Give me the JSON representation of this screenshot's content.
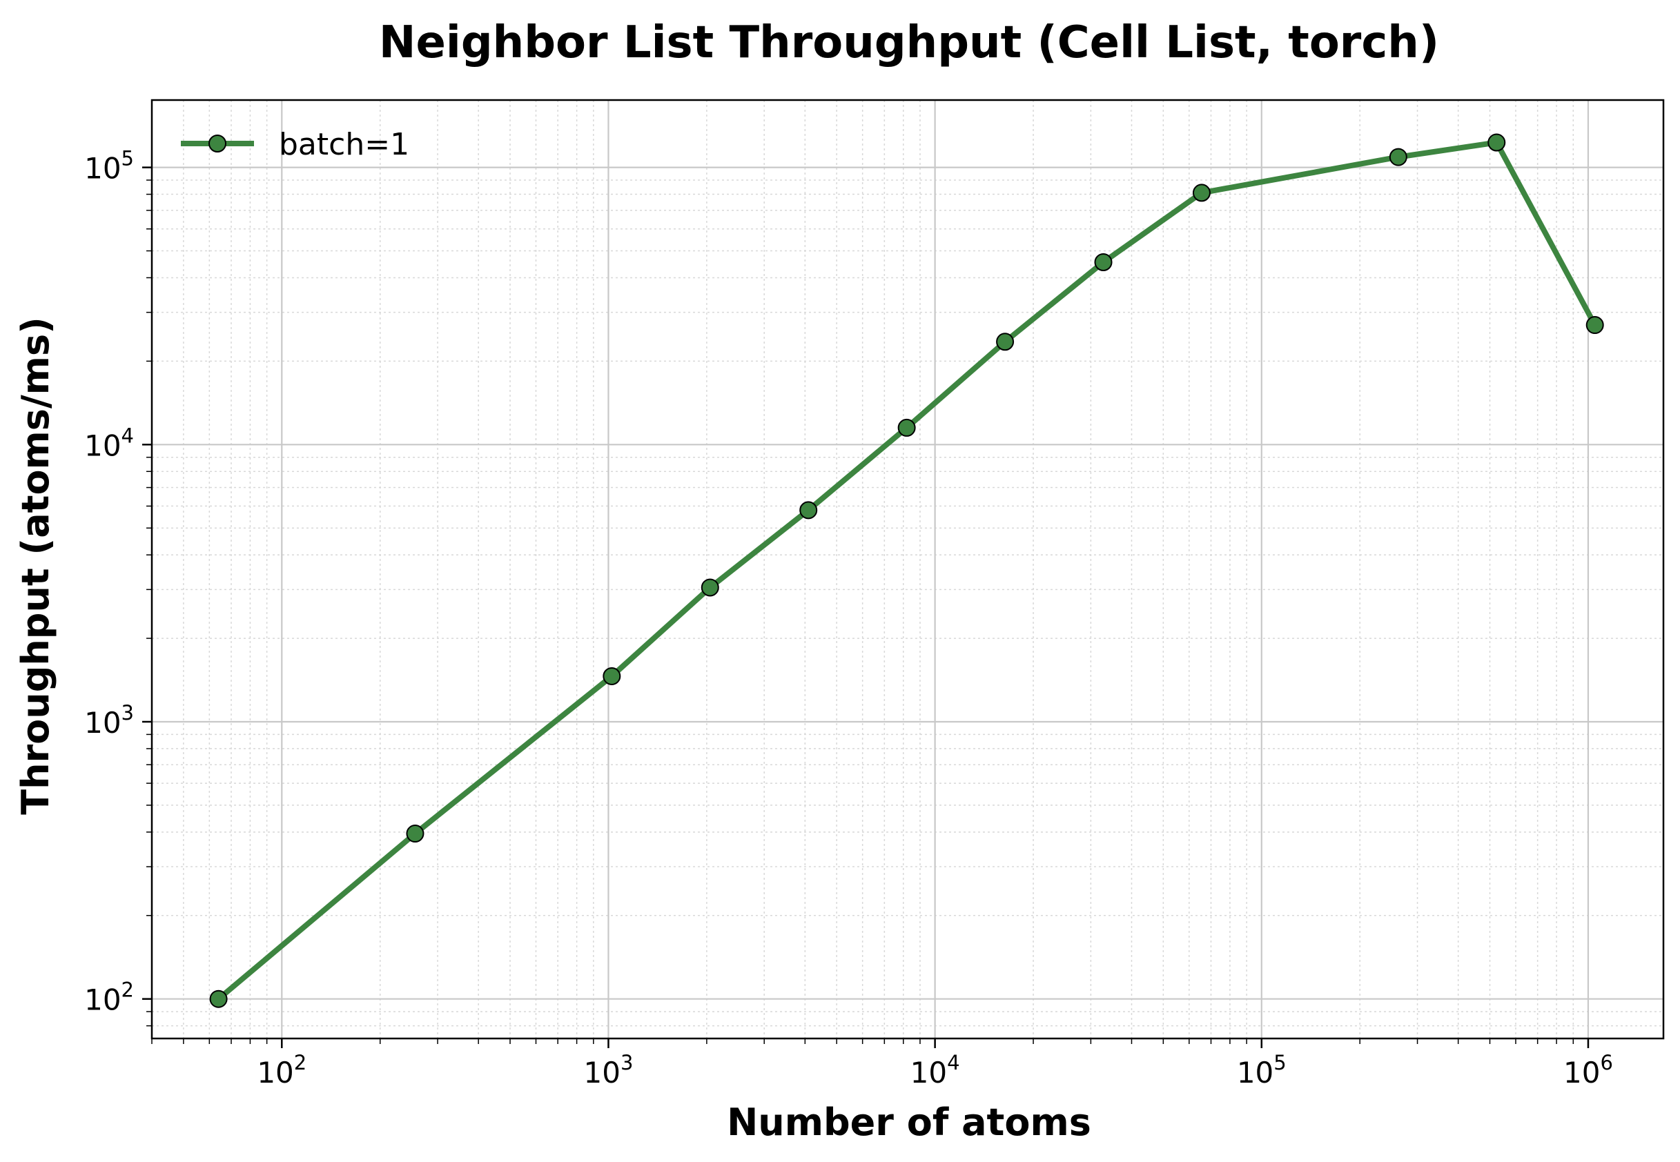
{
  "chart_data": {
    "type": "line",
    "title": "Neighbor List Throughput (Cell List, torch)",
    "xlabel": "Number of atoms",
    "ylabel": "Throughput (atoms/ms)",
    "xscale": "log",
    "yscale": "log",
    "xlim": [
      40,
      1700000
    ],
    "ylim": [
      72,
      175000
    ],
    "x_ticks": [
      {
        "value": 100,
        "base": "10",
        "exp": "2"
      },
      {
        "value": 1000,
        "base": "10",
        "exp": "3"
      },
      {
        "value": 10000,
        "base": "10",
        "exp": "4"
      },
      {
        "value": 100000,
        "base": "10",
        "exp": "5"
      },
      {
        "value": 1000000,
        "base": "10",
        "exp": "6"
      }
    ],
    "y_ticks": [
      {
        "value": 100,
        "base": "10",
        "exp": "2"
      },
      {
        "value": 1000,
        "base": "10",
        "exp": "3"
      },
      {
        "value": 10000,
        "base": "10",
        "exp": "4"
      },
      {
        "value": 100000,
        "base": "10",
        "exp": "5"
      }
    ],
    "grid": true,
    "legend_position": "top-left",
    "series": [
      {
        "name": "batch=1",
        "color": "#3d8540",
        "x": [
          64,
          256,
          1024,
          2048,
          4096,
          8192,
          16384,
          32768,
          65536,
          262144,
          524288,
          1048576
        ],
        "y": [
          100,
          395,
          1460,
          3050,
          5800,
          11500,
          23500,
          45500,
          81000,
          109000,
          123000,
          27000
        ]
      }
    ]
  }
}
